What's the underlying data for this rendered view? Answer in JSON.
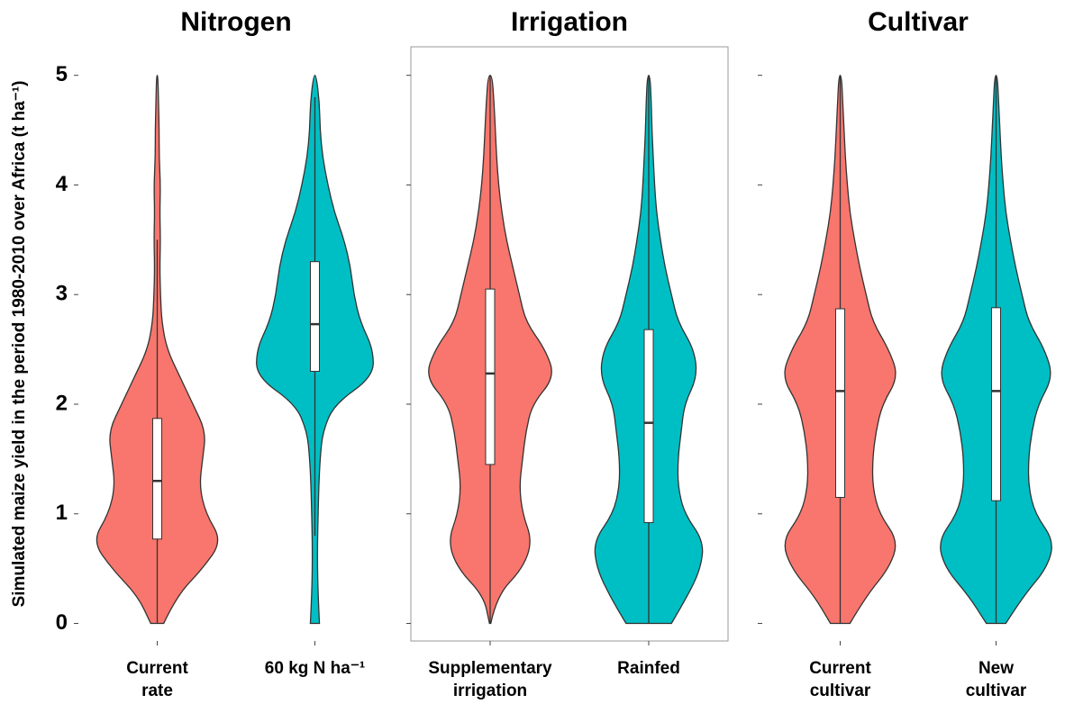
{
  "chart_data": [
    {
      "type": "violin",
      "title": "Nitrogen",
      "ylabel": "Simulated maize yield in the period 1980-2010 over Africa (t ha⁻¹)",
      "ylim": [
        -0.16,
        5.26
      ],
      "yticks": [
        0,
        1,
        2,
        3,
        4,
        5
      ],
      "ytick_labels": true,
      "frame": false,
      "density_y": [
        0,
        0.25,
        0.5,
        0.75,
        1,
        1.25,
        1.5,
        1.75,
        2,
        2.25,
        2.5,
        2.75,
        3,
        3.25,
        3.5,
        3.75,
        4,
        4.25,
        4.5,
        4.75,
        5
      ],
      "categories": [
        [
          "Current",
          "rate"
        ],
        [
          "60 kg N ha⁻¹"
        ]
      ],
      "series": [
        {
          "color": "#f8766d",
          "density": [
            0.1,
            0.3,
            0.7,
            1.0,
            0.75,
            0.65,
            0.7,
            0.75,
            0.55,
            0.35,
            0.15,
            0.07,
            0.05,
            0.04,
            0.05,
            0.04,
            0.05,
            0.03,
            0.03,
            0.02,
            0.01
          ],
          "whisker_low": 0,
          "q1": 0.77,
          "median": 1.3,
          "q3": 1.87,
          "whisker_high": 3.5
        },
        {
          "color": "#00bfc4",
          "density": [
            0.07,
            0.05,
            0.04,
            0.04,
            0.05,
            0.06,
            0.08,
            0.12,
            0.3,
            0.9,
            0.9,
            0.7,
            0.6,
            0.55,
            0.45,
            0.3,
            0.2,
            0.12,
            0.08,
            0.07,
            0.02
          ],
          "whisker_low": 0.8,
          "q1": 2.3,
          "median": 2.73,
          "q3": 3.3,
          "whisker_high": 4.8
        }
      ]
    },
    {
      "type": "violin",
      "title": "Irrigation",
      "ylim": [
        -0.16,
        5.26
      ],
      "yticks": [
        0,
        1,
        2,
        3,
        4,
        5
      ],
      "ytick_labels": false,
      "frame": true,
      "density_y": [
        0,
        0.25,
        0.5,
        0.75,
        1,
        1.25,
        1.5,
        1.75,
        2,
        2.25,
        2.5,
        2.75,
        3,
        3.25,
        3.5,
        3.75,
        4,
        4.25,
        4.5,
        4.75,
        5
      ],
      "categories": [
        [
          "Supplementary",
          "irrigation"
        ],
        [
          "Rainfed"
        ]
      ],
      "series": [
        {
          "color": "#f8766d",
          "density": [
            0.01,
            0.1,
            0.5,
            0.65,
            0.5,
            0.45,
            0.5,
            0.55,
            0.65,
            1.0,
            0.85,
            0.55,
            0.45,
            0.35,
            0.25,
            0.18,
            0.13,
            0.1,
            0.08,
            0.06,
            0.03
          ],
          "whisker_low": 0,
          "q1": 1.45,
          "median": 2.28,
          "q3": 3.05,
          "whisker_high": 5
        },
        {
          "color": "#00bfc4",
          "density": [
            0.35,
            0.6,
            0.8,
            0.85,
            0.55,
            0.45,
            0.45,
            0.5,
            0.55,
            0.75,
            0.7,
            0.45,
            0.35,
            0.25,
            0.18,
            0.12,
            0.09,
            0.07,
            0.05,
            0.04,
            0.02
          ],
          "whisker_low": 0,
          "q1": 0.92,
          "median": 1.83,
          "q3": 2.68,
          "whisker_high": 5
        }
      ]
    },
    {
      "type": "violin",
      "title": "Cultivar",
      "ylim": [
        -0.16,
        5.26
      ],
      "yticks": [
        0,
        1,
        2,
        3,
        4,
        5
      ],
      "ytick_labels": false,
      "frame": false,
      "density_y": [
        0,
        0.25,
        0.5,
        0.75,
        1,
        1.25,
        1.5,
        1.75,
        2,
        2.25,
        2.5,
        2.75,
        3,
        3.25,
        3.5,
        3.75,
        4,
        4.25,
        4.5,
        4.75,
        5
      ],
      "categories": [
        [
          "Current",
          "cultivar"
        ],
        [
          "New",
          "cultivar"
        ]
      ],
      "series": [
        {
          "color": "#f8766d",
          "density": [
            0.15,
            0.4,
            0.75,
            0.9,
            0.6,
            0.5,
            0.5,
            0.55,
            0.65,
            0.9,
            0.75,
            0.5,
            0.4,
            0.3,
            0.22,
            0.15,
            0.11,
            0.08,
            0.06,
            0.04,
            0.02
          ],
          "whisker_low": 0,
          "q1": 1.15,
          "median": 2.12,
          "q3": 2.87,
          "whisker_high": 5
        },
        {
          "color": "#00bfc4",
          "density": [
            0.15,
            0.42,
            0.78,
            0.9,
            0.6,
            0.5,
            0.5,
            0.55,
            0.65,
            0.88,
            0.75,
            0.5,
            0.4,
            0.3,
            0.22,
            0.15,
            0.11,
            0.08,
            0.06,
            0.04,
            0.02
          ],
          "whisker_low": 0,
          "q1": 1.12,
          "median": 2.12,
          "q3": 2.88,
          "whisker_high": 5
        }
      ]
    }
  ]
}
